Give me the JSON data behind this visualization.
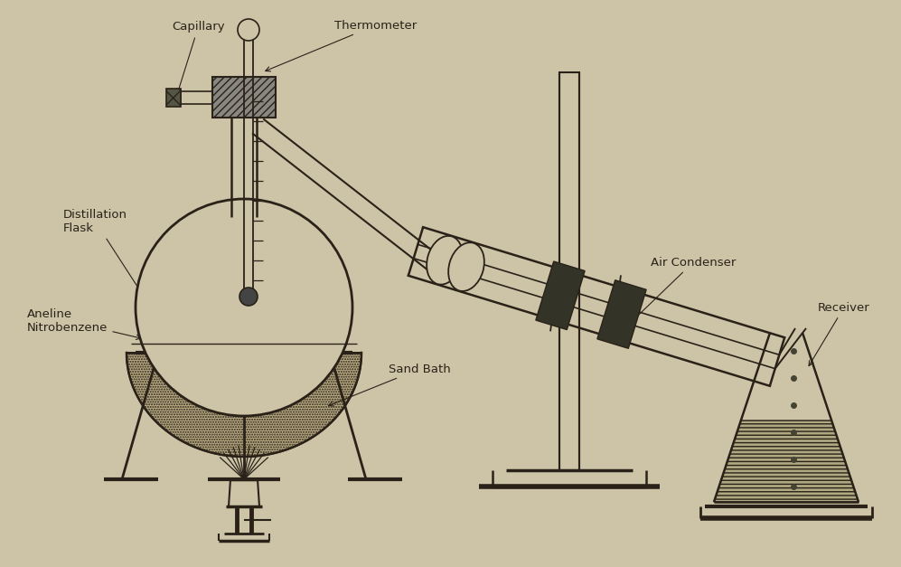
{
  "background_color": "#cdc4a8",
  "line_color": "#2a2218",
  "labels": {
    "capillary": "Capillary",
    "thermometer": "Thermometer",
    "distillation_flask": "Distillation\nFlask",
    "aneline": "Aneline\nNitrobenzene",
    "sand_bath": "Sand Bath",
    "air_condenser": "Air Condenser",
    "receiver": "Receiver"
  },
  "label_fontsize": 9.5
}
